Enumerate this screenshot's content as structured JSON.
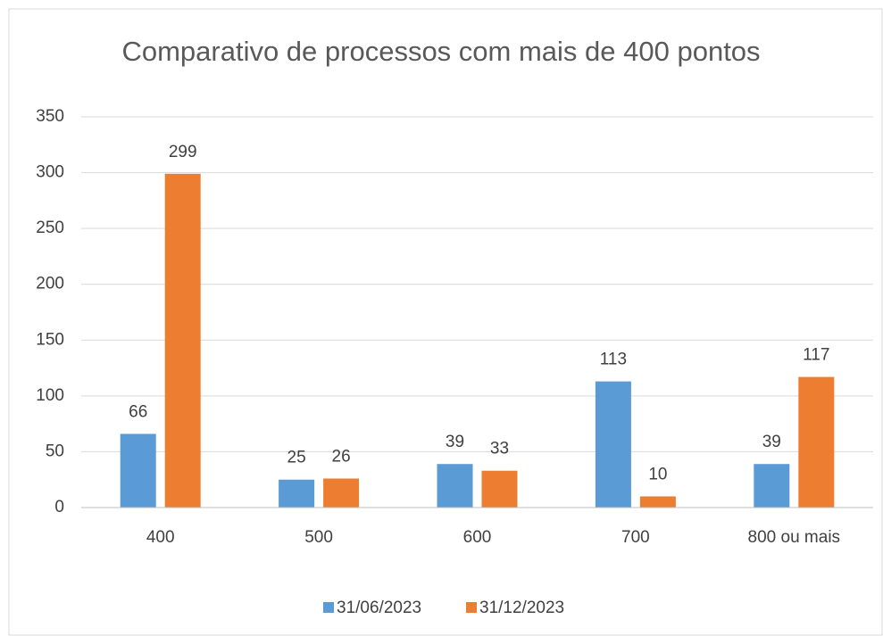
{
  "chart_data": {
    "type": "bar",
    "title": "Comparativo de processos com mais de 400 pontos",
    "categories": [
      "400",
      "500",
      "600",
      "700",
      "800 ou mais"
    ],
    "series": [
      {
        "name": "31/06/2023",
        "color": "#5b9bd5",
        "values": [
          66,
          25,
          39,
          113,
          39
        ]
      },
      {
        "name": "31/12/2023",
        "color": "#ed7d31",
        "values": [
          299,
          26,
          33,
          10,
          117
        ]
      }
    ],
    "ylim": [
      0,
      350
    ],
    "yticks": [
      0,
      50,
      100,
      150,
      200,
      250,
      300,
      350
    ],
    "grid": true,
    "legend": "bottom"
  }
}
